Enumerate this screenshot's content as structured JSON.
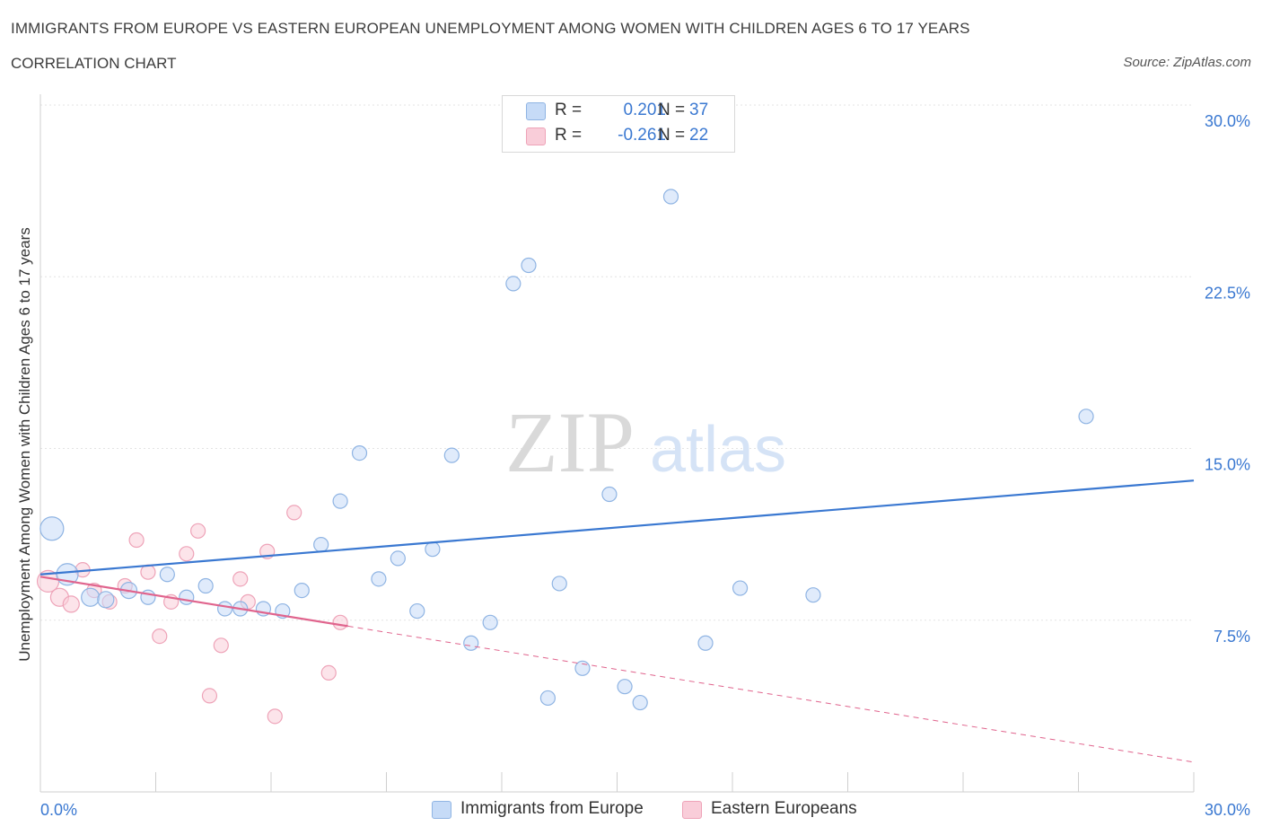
{
  "header": {
    "title": "IMMIGRANTS FROM EUROPE VS EASTERN EUROPEAN UNEMPLOYMENT AMONG WOMEN WITH CHILDREN AGES 6 TO 17 YEARS",
    "subtitle": "CORRELATION CHART",
    "source": "Source: ZipAtlas.com"
  },
  "watermark": {
    "zip": "ZIP",
    "atlas": "atlas"
  },
  "legend": {
    "rows": [
      {
        "r_label": "R =",
        "r_value": "0.201",
        "n_label": "N =",
        "n_value": "37"
      },
      {
        "r_label": "R =",
        "r_value": "-0.261",
        "n_label": "N =",
        "n_value": "22"
      }
    ]
  },
  "colors": {
    "blue_fill": "#c6dbf7",
    "blue_stroke": "#8fb4e3",
    "blue_line": "#3a78d1",
    "pink_fill": "#f9cdd9",
    "pink_stroke": "#eea3b8",
    "pink_line": "#e0648d",
    "axis_text": "#3a78d1",
    "grid": "#e3e3e3"
  },
  "chart_data": {
    "type": "scatter",
    "title": "IMMIGRANTS FROM EUROPE VS EASTERN EUROPEAN UNEMPLOYMENT AMONG WOMEN WITH CHILDREN AGES 6 TO 17 YEARS",
    "xlabel": "",
    "ylabel": "Unemployment Among Women with Children Ages 6 to 17 years",
    "xlim": [
      0,
      30
    ],
    "ylim": [
      0,
      30
    ],
    "x_tick_labels": [
      "0.0%",
      "30.0%"
    ],
    "y_tick_values": [
      7.5,
      15.0,
      22.5,
      30.0
    ],
    "y_tick_labels": [
      "7.5%",
      "15.0%",
      "22.5%",
      "30.0%"
    ],
    "grid": true,
    "legend_position": "top-center",
    "series": [
      {
        "name": "Immigrants from Europe",
        "color": "#c6dbf7",
        "points": [
          [
            0.3,
            11.5,
            13
          ],
          [
            0.7,
            9.5,
            12
          ],
          [
            1.3,
            8.5,
            10
          ],
          [
            1.7,
            8.4,
            9
          ],
          [
            2.3,
            8.8,
            9
          ],
          [
            2.8,
            8.5,
            8
          ],
          [
            3.3,
            9.5,
            8
          ],
          [
            3.8,
            8.5,
            8
          ],
          [
            4.3,
            9.0,
            8
          ],
          [
            4.8,
            8.0,
            8
          ],
          [
            5.2,
            8.0,
            8
          ],
          [
            5.8,
            8.0,
            8
          ],
          [
            6.3,
            7.9,
            8
          ],
          [
            6.8,
            8.8,
            8
          ],
          [
            7.3,
            10.8,
            8
          ],
          [
            7.8,
            12.7,
            8
          ],
          [
            8.3,
            14.8,
            8
          ],
          [
            8.8,
            9.3,
            8
          ],
          [
            9.3,
            10.2,
            8
          ],
          [
            9.8,
            7.9,
            8
          ],
          [
            10.2,
            10.6,
            8
          ],
          [
            10.7,
            14.7,
            8
          ],
          [
            11.2,
            6.5,
            8
          ],
          [
            11.7,
            7.4,
            8
          ],
          [
            12.3,
            22.2,
            8
          ],
          [
            12.7,
            23.0,
            8
          ],
          [
            13.2,
            4.1,
            8
          ],
          [
            13.5,
            9.1,
            8
          ],
          [
            14.1,
            5.4,
            8
          ],
          [
            14.8,
            13.0,
            8
          ],
          [
            15.2,
            4.6,
            8
          ],
          [
            15.6,
            3.9,
            8
          ],
          [
            16.4,
            26.0,
            8
          ],
          [
            17.3,
            6.5,
            8
          ],
          [
            18.2,
            8.9,
            8
          ],
          [
            20.1,
            8.6,
            8
          ],
          [
            27.2,
            16.4,
            8
          ]
        ],
        "trend": {
          "x": [
            0,
            30
          ],
          "y": [
            9.5,
            13.6
          ]
        }
      },
      {
        "name": "Eastern Europeans",
        "color": "#f9cdd9",
        "points": [
          [
            0.2,
            9.2,
            12
          ],
          [
            0.5,
            8.5,
            10
          ],
          [
            0.8,
            8.2,
            9
          ],
          [
            1.1,
            9.7,
            8
          ],
          [
            1.4,
            8.8,
            8
          ],
          [
            1.8,
            8.3,
            8
          ],
          [
            2.2,
            9.0,
            8
          ],
          [
            2.5,
            11.0,
            8
          ],
          [
            2.8,
            9.6,
            8
          ],
          [
            3.1,
            6.8,
            8
          ],
          [
            3.4,
            8.3,
            8
          ],
          [
            3.8,
            10.4,
            8
          ],
          [
            4.1,
            11.4,
            8
          ],
          [
            4.4,
            4.2,
            8
          ],
          [
            4.7,
            6.4,
            8
          ],
          [
            5.2,
            9.3,
            8
          ],
          [
            5.4,
            8.3,
            8
          ],
          [
            5.9,
            10.5,
            8
          ],
          [
            6.1,
            3.3,
            8
          ],
          [
            6.6,
            12.2,
            8
          ],
          [
            7.5,
            5.2,
            8
          ],
          [
            7.8,
            7.4,
            8
          ]
        ],
        "trend": {
          "x": [
            0,
            30
          ],
          "y": [
            9.4,
            1.3
          ],
          "solid_until": 8.0
        }
      }
    ]
  }
}
